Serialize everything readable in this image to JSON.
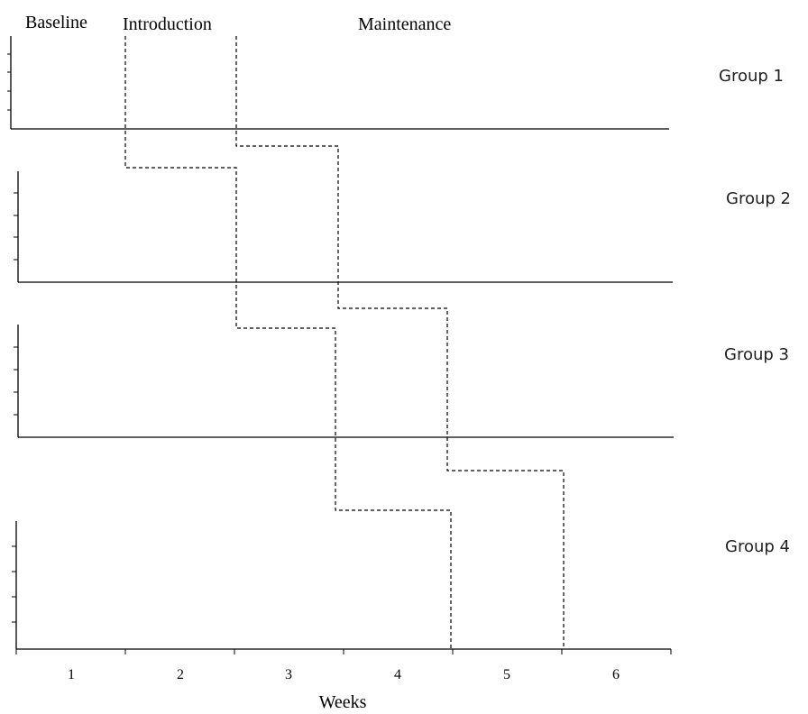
{
  "phases": {
    "baseline": "Baseline",
    "introduction": "Introduction",
    "maintenance": "Maintenance"
  },
  "groups": [
    "Group 1",
    "Group 2",
    "Group 3",
    "Group 4"
  ],
  "x_axis": {
    "label": "Weeks",
    "ticks": [
      "1",
      "2",
      "3",
      "4",
      "5",
      "6"
    ]
  }
}
